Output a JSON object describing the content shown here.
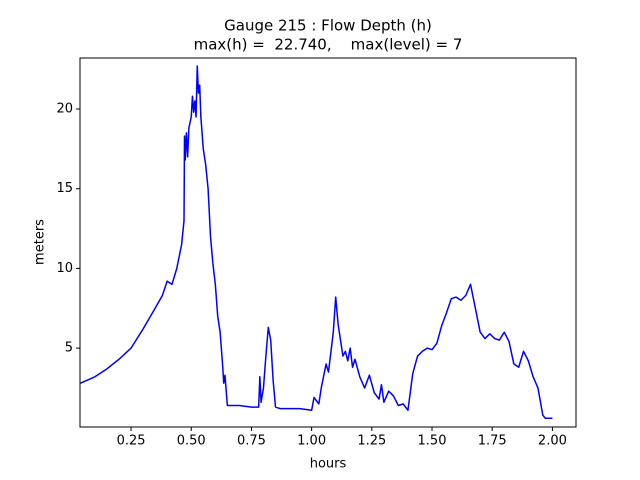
{
  "chart_data": {
    "type": "line",
    "title": "Gauge 215 : Flow Depth (h)",
    "subtitle": "max(h) =  22.740,    max(level) = 7",
    "xlabel": "hours",
    "ylabel": "meters",
    "xlim": [
      0.038,
      2.098
    ],
    "ylim": [
      0.05,
      23.2
    ],
    "xticks": [
      0.25,
      {
        "value": 0.5,
        "label": "0.50"
      },
      0.75,
      {
        "value": 1,
        "label": "1.00"
      },
      1.25,
      {
        "value": 1.5,
        "label": "1.50"
      },
      1.75,
      {
        "value": 2,
        "label": "2.00"
      }
    ],
    "yticks": [
      5,
      10,
      15,
      20
    ],
    "series": [
      {
        "color": "#0000ff",
        "x": [
          0.04,
          0.1,
          0.15,
          0.2,
          0.25,
          0.3,
          0.35,
          0.38,
          0.4,
          0.42,
          0.44,
          0.46,
          0.47,
          0.472,
          0.475,
          0.48,
          0.485,
          0.49,
          0.5,
          0.505,
          0.51,
          0.515,
          0.52,
          0.525,
          0.53,
          0.535,
          0.54,
          0.55,
          0.56,
          0.57,
          0.58,
          0.59,
          0.6,
          0.61,
          0.62,
          0.63,
          0.635,
          0.64,
          0.65,
          0.7,
          0.75,
          0.78,
          0.785,
          0.79,
          0.8,
          0.81,
          0.82,
          0.83,
          0.84,
          0.85,
          0.87,
          0.95,
          1.0,
          1.01,
          1.03,
          1.04,
          1.06,
          1.07,
          1.09,
          1.1,
          1.11,
          1.13,
          1.14,
          1.15,
          1.16,
          1.17,
          1.18,
          1.2,
          1.22,
          1.24,
          1.26,
          1.28,
          1.29,
          1.3,
          1.32,
          1.34,
          1.36,
          1.38,
          1.4,
          1.42,
          1.44,
          1.46,
          1.48,
          1.5,
          1.52,
          1.54,
          1.56,
          1.58,
          1.6,
          1.62,
          1.64,
          1.66,
          1.68,
          1.7,
          1.72,
          1.74,
          1.76,
          1.78,
          1.8,
          1.82,
          1.84,
          1.86,
          1.88,
          1.9,
          1.92,
          1.94,
          1.96,
          1.97,
          2.0
        ],
        "values": [
          2.8,
          3.2,
          3.7,
          4.3,
          5.0,
          6.2,
          7.5,
          8.3,
          9.2,
          9.0,
          10.0,
          11.5,
          13,
          18.3,
          16.8,
          18.5,
          17,
          18.8,
          19.5,
          20.8,
          19.8,
          20.5,
          19.5,
          22.7,
          21,
          21.5,
          19.5,
          17.5,
          16.5,
          15,
          12,
          10.3,
          9,
          7,
          6,
          4,
          2.8,
          3.3,
          1.4,
          1.4,
          1.3,
          1.3,
          3.2,
          1.6,
          2.5,
          4.5,
          6.3,
          5.5,
          3,
          1.3,
          1.2,
          1.2,
          1.1,
          1.9,
          1.5,
          2.5,
          4,
          3.5,
          6,
          8.2,
          6.5,
          4.5,
          4.8,
          4.2,
          5.0,
          3.8,
          4.3,
          3.2,
          2.5,
          3.3,
          2.2,
          1.8,
          2.7,
          1.6,
          2.3,
          2.0,
          1.4,
          1.5,
          1.1,
          3.4,
          4.5,
          4.8,
          5.0,
          4.9,
          5.3,
          6.4,
          7.2,
          8.1,
          8.2,
          8.0,
          8.3,
          9.0,
          7.5,
          6.0,
          5.6,
          5.9,
          5.6,
          5.5,
          6.0,
          5.4,
          4.0,
          3.8,
          4.8,
          4.2,
          3.2,
          2.5,
          0.8,
          0.6,
          0.6
        ]
      }
    ]
  }
}
